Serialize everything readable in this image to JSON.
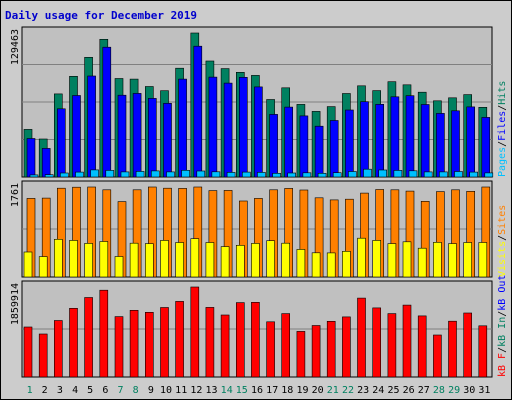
{
  "title": "Daily usage for December 2019",
  "chart_data": [
    {
      "type": "bar",
      "panel": "pages-files-hits",
      "y_max_label": "129463",
      "ylim": [
        0,
        129463
      ],
      "legend": [
        {
          "name": "Pages",
          "color": "#00c0ff"
        },
        {
          "name": "Files",
          "color": "#0000ff"
        },
        {
          "name": "Hits",
          "color": "#008060"
        }
      ],
      "legend_separator": "/",
      "series": [
        {
          "name": "Hits",
          "color": "#008060",
          "values": [
            42800,
            34200,
            74700,
            90500,
            107600,
            123800,
            88600,
            88000,
            81400,
            77600,
            97800,
            129463,
            104300,
            97500,
            94100,
            91300,
            69700,
            80200,
            65300,
            59000,
            63300,
            75100,
            82000,
            77700,
            85700,
            82900,
            76200,
            68500,
            71200,
            74100,
            62700
          ]
        },
        {
          "name": "Files",
          "color": "#0000ff",
          "values": [
            34600,
            25700,
            61300,
            73300,
            90800,
            116700,
            73500,
            75200,
            70700,
            66300,
            88000,
            117600,
            89800,
            84400,
            89600,
            81000,
            56300,
            62800,
            54900,
            45700,
            50800,
            60200,
            67700,
            65400,
            72100,
            73100,
            65200,
            57200,
            59500,
            63000,
            53600
          ]
        },
        {
          "name": "Pages",
          "color": "#00c0ff",
          "values": [
            1900,
            2100,
            3600,
            4400,
            6400,
            5900,
            4600,
            5000,
            5500,
            4600,
            6000,
            5400,
            4700,
            4100,
            4400,
            4100,
            3300,
            3600,
            3800,
            3300,
            3900,
            4900,
            7000,
            6300,
            5900,
            5600,
            4600,
            4600,
            4900,
            4400,
            3700
          ]
        }
      ]
    },
    {
      "type": "bar",
      "panel": "visits-sites",
      "y_max_label": "1761",
      "ylim": [
        0,
        1761
      ],
      "legend": [
        {
          "name": "Visits",
          "color": "#ffff00"
        },
        {
          "name": "Sites",
          "color": "#ff8000"
        }
      ],
      "legend_separator": "/",
      "series": [
        {
          "name": "Sites",
          "color": "#ff8000",
          "values": [
            1538,
            1544,
            1738,
            1757,
            1761,
            1707,
            1475,
            1707,
            1761,
            1738,
            1733,
            1761,
            1690,
            1695,
            1488,
            1538,
            1706,
            1733,
            1702,
            1550,
            1509,
            1523,
            1641,
            1713,
            1706,
            1681,
            1481,
            1671,
            1707,
            1676,
            1761
          ]
        },
        {
          "name": "Visits",
          "color": "#ffff00",
          "values": [
            490,
            400,
            738,
            716,
            658,
            695,
            402,
            662,
            654,
            716,
            676,
            749,
            676,
            594,
            620,
            658,
            711,
            662,
            540,
            473,
            472,
            502,
            760,
            716,
            654,
            689,
            563,
            678,
            654,
            676,
            676
          ]
        }
      ]
    },
    {
      "type": "bar",
      "panel": "kbytes",
      "y_max_label": "1859914",
      "ylim": [
        0,
        1859914
      ],
      "legend": [
        {
          "name": "kB F",
          "color": "#ff0000"
        },
        {
          "name": "kB In",
          "color": "#008060"
        },
        {
          "name": "kB Out",
          "color": "#0000ff"
        }
      ],
      "legend_separator": "/",
      "series": [
        {
          "name": "kB F",
          "color": "#ff0000",
          "values": [
            1034000,
            888000,
            1168000,
            1420000,
            1642000,
            1793000,
            1249000,
            1378000,
            1337000,
            1437000,
            1563000,
            1859914,
            1439000,
            1281000,
            1538000,
            1544000,
            1141000,
            1310000,
            943000,
            1064000,
            1152000,
            1243000,
            1630000,
            1429000,
            1311000,
            1486000,
            1262000,
            868000,
            1154000,
            1322000,
            1059000
          ]
        }
      ]
    }
  ],
  "days": [
    {
      "label": "1",
      "weekend": true
    },
    {
      "label": "2",
      "weekend": false
    },
    {
      "label": "3",
      "weekend": false
    },
    {
      "label": "4",
      "weekend": false
    },
    {
      "label": "5",
      "weekend": false
    },
    {
      "label": "6",
      "weekend": false
    },
    {
      "label": "7",
      "weekend": true
    },
    {
      "label": "8",
      "weekend": true
    },
    {
      "label": "9",
      "weekend": false
    },
    {
      "label": "10",
      "weekend": false
    },
    {
      "label": "11",
      "weekend": false
    },
    {
      "label": "12",
      "weekend": false
    },
    {
      "label": "13",
      "weekend": false
    },
    {
      "label": "14",
      "weekend": true
    },
    {
      "label": "15",
      "weekend": true
    },
    {
      "label": "16",
      "weekend": false
    },
    {
      "label": "17",
      "weekend": false
    },
    {
      "label": "18",
      "weekend": false
    },
    {
      "label": "19",
      "weekend": false
    },
    {
      "label": "20",
      "weekend": false
    },
    {
      "label": "21",
      "weekend": true
    },
    {
      "label": "22",
      "weekend": true
    },
    {
      "label": "23",
      "weekend": false
    },
    {
      "label": "24",
      "weekend": false
    },
    {
      "label": "25",
      "weekend": false
    },
    {
      "label": "26",
      "weekend": false
    },
    {
      "label": "27",
      "weekend": false
    },
    {
      "label": "28",
      "weekend": true
    },
    {
      "label": "29",
      "weekend": true
    },
    {
      "label": "30",
      "weekend": false
    },
    {
      "label": "31",
      "weekend": false
    }
  ],
  "colors": {
    "background": "#cccccc",
    "plot_background": "#c0c0c0",
    "grid": "#808080",
    "title": "#0000cc",
    "day_label": "#000000",
    "weekend_day_label": "#008060",
    "separator": "#000000"
  }
}
